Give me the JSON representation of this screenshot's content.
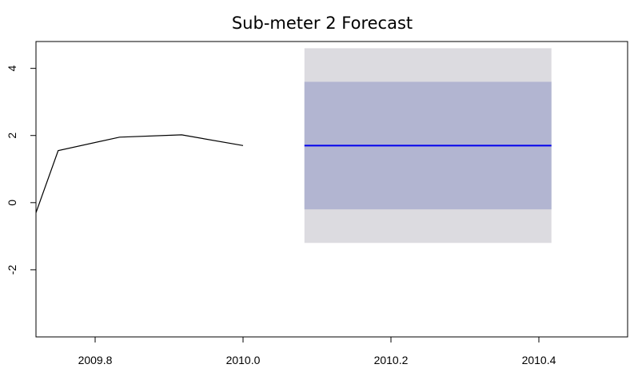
{
  "chart_data": {
    "type": "line",
    "title": "Sub-meter 2 Forecast",
    "xlabel": "",
    "ylabel": "",
    "xlim": [
      2009.72,
      2010.52
    ],
    "ylim": [
      -4,
      4.8
    ],
    "grid": false,
    "legend": "none",
    "x_ticks": [
      {
        "value": 2009.8,
        "label": "2009.8"
      },
      {
        "value": 2010.0,
        "label": "2010.0"
      },
      {
        "value": 2010.2,
        "label": "2010.2"
      },
      {
        "value": 2010.4,
        "label": "2010.4"
      }
    ],
    "y_ticks": [
      {
        "value": -2,
        "label": "-2"
      },
      {
        "value": 0,
        "label": "0"
      },
      {
        "value": 2,
        "label": "2"
      },
      {
        "value": 4,
        "label": "4"
      }
    ],
    "history": {
      "x": [
        2009.72,
        2009.75,
        2009.833,
        2009.917,
        2010.0
      ],
      "y": [
        -0.3,
        1.55,
        1.95,
        2.02,
        1.7
      ],
      "color": "#000000"
    },
    "forecast": {
      "x": [
        2010.083,
        2010.417
      ],
      "mean": 1.7,
      "lower_80": -0.2,
      "upper_80": 3.6,
      "lower_95": -1.2,
      "upper_95": 4.6,
      "line_color": "#0000ee",
      "band_80_color": "#b2b5d1",
      "band_95_color": "#dcdbe0"
    }
  }
}
